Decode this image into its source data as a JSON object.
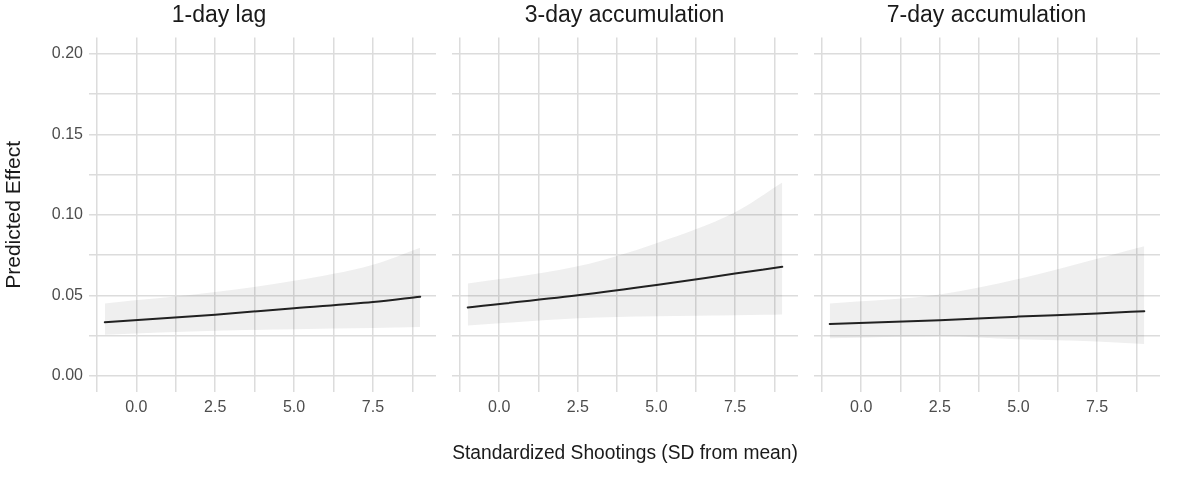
{
  "chart_data": [
    {
      "type": "line",
      "title": "1-day lag",
      "ylabel": "Predicted Effect",
      "x": [
        -1,
        2.5,
        5,
        7.5,
        9
      ],
      "series": [
        {
          "color": "#222222",
          "values": [
            0.0333,
            0.038,
            0.042,
            0.0458,
            0.0492
          ],
          "lower": [
            0.0256,
            0.028,
            0.029,
            0.0297,
            0.0304
          ],
          "upper": [
            0.045,
            0.052,
            0.059,
            0.069,
            0.0795
          ]
        }
      ],
      "xlim": [
        -1.5,
        9.5
      ],
      "ylim": [
        -0.01,
        0.21
      ],
      "xticks": [
        {
          "value": -1.25,
          "label": null
        },
        {
          "value": 0,
          "label": "0.0"
        },
        {
          "value": 1.25,
          "label": null
        },
        {
          "value": 2.5,
          "label": "2.5"
        },
        {
          "value": 3.75,
          "label": null
        },
        {
          "value": 5,
          "label": "5.0"
        },
        {
          "value": 6.25,
          "label": null
        },
        {
          "value": 7.5,
          "label": "7.5"
        },
        {
          "value": 8.75,
          "label": null
        }
      ],
      "yticks": [
        {
          "value": 0,
          "label": "0.00"
        },
        {
          "value": 0.025,
          "label": null
        },
        {
          "value": 0.05,
          "label": "0.05"
        },
        {
          "value": 0.075,
          "label": null
        },
        {
          "value": 0.1,
          "label": "0.10"
        },
        {
          "value": 0.125,
          "label": null
        },
        {
          "value": 0.15,
          "label": "0.15"
        },
        {
          "value": 0.175,
          "label": null
        },
        {
          "value": 0.2,
          "label": "0.20"
        }
      ],
      "grid": true,
      "legend": false,
      "marker": "none",
      "line_style": "solid"
    },
    {
      "type": "line",
      "title": "3-day accumulation",
      "xlabel": "Standardized Shootings (SD from mean)",
      "x": [
        -1,
        2.5,
        5,
        7.5,
        9
      ],
      "series": [
        {
          "color": "#222222",
          "values": [
            0.0425,
            0.05,
            0.0564,
            0.0635,
            0.0677
          ],
          "lower": [
            0.0313,
            0.0358,
            0.0371,
            0.0377,
            0.0381
          ],
          "upper": [
            0.0573,
            0.068,
            0.0824,
            0.1016,
            0.12
          ]
        }
      ],
      "xlim": [
        -1.5,
        9.5
      ],
      "ylim": [
        -0.01,
        0.21
      ],
      "xticks": [
        {
          "value": -1.25,
          "label": null
        },
        {
          "value": 0,
          "label": "0.0"
        },
        {
          "value": 1.25,
          "label": null
        },
        {
          "value": 2.5,
          "label": "2.5"
        },
        {
          "value": 3.75,
          "label": null
        },
        {
          "value": 5,
          "label": "5.0"
        },
        {
          "value": 6.25,
          "label": null
        },
        {
          "value": 7.5,
          "label": "7.5"
        },
        {
          "value": 8.75,
          "label": null
        }
      ],
      "yticks": [
        {
          "value": 0,
          "label": null
        },
        {
          "value": 0.025,
          "label": null
        },
        {
          "value": 0.05,
          "label": null
        },
        {
          "value": 0.075,
          "label": null
        },
        {
          "value": 0.1,
          "label": null
        },
        {
          "value": 0.125,
          "label": null
        },
        {
          "value": 0.15,
          "label": null
        },
        {
          "value": 0.175,
          "label": null
        },
        {
          "value": 0.2,
          "label": null
        }
      ],
      "tick_labels": "x",
      "grid": true,
      "legend": false,
      "marker": "none",
      "line_style": "solid"
    },
    {
      "type": "line",
      "title": "7-day accumulation",
      "x": [
        -1,
        2.5,
        5,
        7.5,
        9
      ],
      "series": [
        {
          "color": "#222222",
          "values": [
            0.0322,
            0.0345,
            0.0368,
            0.0387,
            0.0402
          ],
          "lower": [
            0.0233,
            0.0246,
            0.0227,
            0.0214,
            0.0198
          ],
          "upper": [
            0.045,
            0.0506,
            0.0602,
            0.0727,
            0.0804
          ]
        }
      ],
      "xlim": [
        -1.5,
        9.5
      ],
      "ylim": [
        -0.01,
        0.21
      ],
      "xticks": [
        {
          "value": -1.25,
          "label": null
        },
        {
          "value": 0,
          "label": "0.0"
        },
        {
          "value": 1.25,
          "label": null
        },
        {
          "value": 2.5,
          "label": "2.5"
        },
        {
          "value": 3.75,
          "label": null
        },
        {
          "value": 5,
          "label": "5.0"
        },
        {
          "value": 6.25,
          "label": null
        },
        {
          "value": 7.5,
          "label": "7.5"
        },
        {
          "value": 8.75,
          "label": null
        }
      ],
      "yticks": [
        {
          "value": 0,
          "label": null
        },
        {
          "value": 0.025,
          "label": null
        },
        {
          "value": 0.05,
          "label": null
        },
        {
          "value": 0.075,
          "label": null
        },
        {
          "value": 0.1,
          "label": null
        },
        {
          "value": 0.125,
          "label": null
        },
        {
          "value": 0.15,
          "label": null
        },
        {
          "value": 0.175,
          "label": null
        },
        {
          "value": 0.2,
          "label": null
        }
      ],
      "tick_labels": "x",
      "grid": true,
      "legend": false,
      "marker": "none",
      "line_style": "solid"
    }
  ]
}
